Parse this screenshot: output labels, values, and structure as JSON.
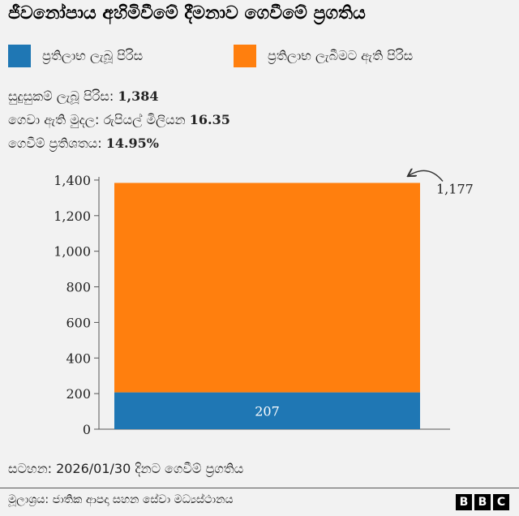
{
  "title": "ජීවනෝපාය අහිමිවීමේ දීමනාව ගෙවීමේ ප්‍රගතිය",
  "legend": [
    {
      "label": "ප්‍රතිලාභ ලැබූ පිරිස",
      "color": "#1f77b4"
    },
    {
      "label": "ප්‍රතිලාභ ලැබීමට ඇති පිරිස",
      "color": "#ff7f0e"
    }
  ],
  "stats": [
    {
      "label": "සුදුසුකම් ලැබූ පිරිස:",
      "value": "1,384"
    },
    {
      "label": "ගෙවා ඇති මුදල: රුපියල් මිලියන",
      "value": "16.35"
    },
    {
      "label": "ගෙවීම් ප්‍රතිශතය:",
      "value": "14.95%"
    }
  ],
  "footnote": "සටහන: 2026/01/30 දිනට ගෙවීම් ප්‍රගතිය",
  "source": "මූලාශ්‍රය: ජාතික ආපදා සහන සේවා මධ්‍යස්ථානය",
  "logo": [
    "B",
    "B",
    "C"
  ],
  "chart_data": {
    "type": "bar",
    "stacked": true,
    "categories": [
      ""
    ],
    "series": [
      {
        "name": "ප්‍රතිලාභ ලැබූ පිරිස",
        "values": [
          207
        ],
        "color": "#1f77b4",
        "value_label": "207"
      },
      {
        "name": "ප්‍රතිලාභ ලැබීමට ඇති පිරිස",
        "values": [
          1177
        ],
        "color": "#ff7f0e",
        "value_label": "1,177"
      }
    ],
    "y_ticks": [
      0,
      200,
      400,
      600,
      800,
      1000,
      1200,
      1400
    ],
    "y_tick_labels": [
      "0",
      "200",
      "400",
      "600",
      "800",
      "1,000",
      "1,200",
      "1,400"
    ],
    "ylim": [
      0,
      1500
    ],
    "grid": false
  }
}
